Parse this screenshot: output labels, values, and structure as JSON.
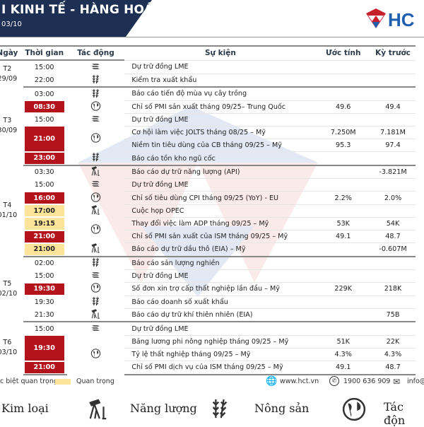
{
  "header": {
    "title": "I KINH TẾ - HÀNG HOÁ",
    "subtitle": "03/10",
    "brand": "HCT",
    "brand_colors": {
      "navy": "#1d2f52",
      "red": "#c8202b",
      "blue": "#1f5fb0"
    }
  },
  "columns": [
    "Ngày",
    "Thời gian",
    "Tác động",
    "Sự kiện",
    "Ước tính",
    "Kỳ trước"
  ],
  "groups": [
    {
      "day": "T2",
      "date": "29/09",
      "rows": [
        {
          "time": "15:00",
          "level": "",
          "icon": "metal-icon",
          "event": "Dự trữ đồng LME",
          "est": "",
          "prev": ""
        },
        {
          "time": "22:00",
          "level": "",
          "icon": "wheat-icon",
          "event": "Kiểm tra xuất khẩu",
          "est": "",
          "prev": ""
        }
      ]
    },
    {
      "day": "T3",
      "date": "30/09",
      "rows": [
        {
          "time": "03:00",
          "level": "",
          "icon": "wheat-icon",
          "event": "Báo cáo tiến độ mùa vụ cây trồng",
          "est": "",
          "prev": ""
        },
        {
          "time": "08:30",
          "level": "red",
          "icon": "globe-icon",
          "event": "Chỉ số PMI sản xuất tháng 09/25– Trung Quốc",
          "est": "49.6",
          "prev": "49.4"
        },
        {
          "time": "15:00",
          "level": "",
          "icon": "metal-icon",
          "event": "Dự trữ đồng LME",
          "est": "",
          "prev": ""
        },
        {
          "time": "21:00",
          "level": "red",
          "icon": "globe-icon",
          "span": 2,
          "event": "Cơ hội làm việc JOLTS tháng 08/25 – Mỹ",
          "est": "7.250M",
          "prev": "7.181M"
        },
        {
          "cont": true,
          "event": "Niềm tin tiêu dùng của CB tháng 09/25 – Mỹ",
          "est": "95.3",
          "prev": "97.4"
        },
        {
          "time": "23:00",
          "level": "red",
          "icon": "wheat-icon",
          "event": "Báo cáo tồn kho ngũ cốc",
          "est": "",
          "prev": ""
        }
      ]
    },
    {
      "day": "T4",
      "date": "01/10",
      "rows": [
        {
          "time": "03:30",
          "level": "",
          "icon": "oil-pump-icon",
          "event": "Báo cáo dự trữ năng lượng (API)",
          "est": "",
          "prev": "-3.821M"
        },
        {
          "time": "15:00",
          "level": "",
          "icon": "metal-icon",
          "event": "Dự trữ đồng LME",
          "est": "",
          "prev": ""
        },
        {
          "time": "16:00",
          "level": "red",
          "icon": "globe-icon",
          "event": "Chỉ số tiêu dùng CPI tháng 09/25 (YoY) - EU",
          "est": "2.2%",
          "prev": "2.0%"
        },
        {
          "time": "17:00",
          "level": "yel",
          "icon": "oil-pump-icon",
          "event": "Cuộc họp OPEC",
          "est": "",
          "prev": ""
        },
        {
          "time": "19:15",
          "level": "yel",
          "icon": "globe-icon",
          "iconspan": 2,
          "event": "Thay đổi việc làm ADP tháng 09/25 – Mỹ",
          "est": "53K",
          "prev": "54K"
        },
        {
          "time": "21:00",
          "level": "red",
          "noicon": true,
          "event": "Chỉ số PMI sản xuất của ISM tháng 09/25 – Mỹ",
          "est": "49.1",
          "prev": "48.7"
        },
        {
          "time": "21:00",
          "level": "yel",
          "icon": "oil-pump-icon",
          "event": "Báo cáo dự trữ dầu thô (EIA) – Mỹ",
          "est": "",
          "prev": "-0.607M"
        }
      ]
    },
    {
      "day": "T5",
      "date": "02/10",
      "rows": [
        {
          "time": "02:00",
          "level": "",
          "icon": "wheat-icon",
          "event": "Báo cáo sản lượng nghiền",
          "est": "",
          "prev": ""
        },
        {
          "time": "15:00",
          "level": "",
          "icon": "metal-icon",
          "event": "Dự trữ đồng LME",
          "est": "",
          "prev": ""
        },
        {
          "time": "19:30",
          "level": "red",
          "icon": "globe-icon",
          "event": "Số đơn xin trợ cấp thất nghiệp lần đầu – Mỹ",
          "est": "229K",
          "prev": "218K"
        },
        {
          "time": "19:30",
          "level": "",
          "icon": "wheat-icon",
          "event": "Báo cáo doanh số xuất khẩu",
          "est": "",
          "prev": ""
        },
        {
          "time": "21:30",
          "level": "",
          "icon": "oil-pump-icon",
          "event": "Báo cáo dự trữ khí thiên nhiên (EIA)",
          "est": "",
          "prev": "75B"
        }
      ]
    },
    {
      "day": "T6",
      "date": "03/10",
      "rows": [
        {
          "time": "15:00",
          "level": "",
          "icon": "metal-icon",
          "event": "Dự trữ đồng LME",
          "est": "",
          "prev": ""
        },
        {
          "time": "19:30",
          "level": "red",
          "icon": "globe-icon",
          "span": 2,
          "iconspan": 3,
          "event": "Bảng lương phi nông nghiệp tháng 09/25 – Mỹ",
          "est": "51K",
          "prev": "22K"
        },
        {
          "cont": true,
          "event": "Tỷ lệ thất nghiệp tháng 09/25 – Mỹ",
          "est": "4.3%",
          "prev": "4.3%"
        },
        {
          "time": "21:00",
          "level": "red",
          "noicon": true,
          "event": "Chỉ số PMI dịch vụ của ISM tháng 09/25 – Mỹ",
          "est": "49.1",
          "prev": "48.7"
        }
      ]
    }
  ],
  "legend": {
    "very_important": "c biệt quan trọng",
    "important": "Quan trọng",
    "very_important_color": "#b3141c",
    "important_color": "#fce49a"
  },
  "contact": {
    "website": "www.hct.vn",
    "phone": "1900 636 909",
    "email": "info@"
  },
  "categories": [
    {
      "label": "Kim loại"
    },
    {
      "label": "Năng lượng",
      "icon": "oil-pump-icon"
    },
    {
      "label": "Nông sản",
      "icon": "wheat-icon"
    },
    {
      "label": "Tác độn",
      "icon": "globe-icon"
    }
  ]
}
